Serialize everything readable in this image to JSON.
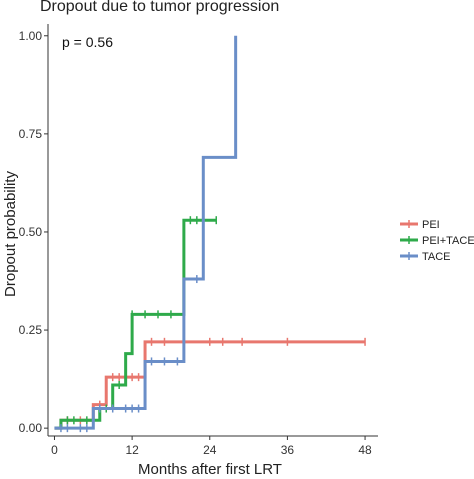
{
  "chart_data": {
    "type": "line",
    "title": "Dropout due to tumor progression",
    "xlabel": "Months after first LRT",
    "ylabel": "Dropout probability",
    "annotation": "p = 0.56",
    "legend_position": "right",
    "xlim": [
      -1,
      50
    ],
    "ylim": [
      -0.02,
      1.03
    ],
    "x_ticks": [
      0,
      12,
      24,
      36,
      48
    ],
    "y_ticks": [
      0.0,
      0.25,
      0.5,
      0.75,
      1.0
    ],
    "y_tick_labels": [
      "0.00",
      "0.25",
      "0.50",
      "0.75",
      "1.00"
    ],
    "grid": false,
    "series": [
      {
        "name": "PEI",
        "color": "#E8776E",
        "steps": [
          [
            0,
            0.0
          ],
          [
            1,
            0.02
          ],
          [
            6,
            0.06
          ],
          [
            8,
            0.13
          ],
          [
            14,
            0.22
          ],
          [
            48,
            0.22
          ]
        ],
        "censor_x": [
          2,
          4,
          7,
          9,
          10,
          11,
          12,
          13,
          15,
          17,
          20,
          24,
          26,
          29,
          36,
          48
        ]
      },
      {
        "name": "PEI+TACE",
        "color": "#2EAA4A",
        "steps": [
          [
            0,
            0.0
          ],
          [
            1,
            0.02
          ],
          [
            7,
            0.05
          ],
          [
            9,
            0.11
          ],
          [
            11,
            0.19
          ],
          [
            12,
            0.29
          ],
          [
            20,
            0.53
          ],
          [
            25,
            0.53
          ]
        ],
        "censor_x": [
          2,
          3,
          5,
          8,
          10,
          12,
          14,
          16,
          18,
          21,
          22,
          23,
          25
        ]
      },
      {
        "name": "TACE",
        "color": "#6A8EC8",
        "steps": [
          [
            0,
            0.0
          ],
          [
            6,
            0.05
          ],
          [
            14,
            0.17
          ],
          [
            20,
            0.38
          ],
          [
            23,
            0.69
          ],
          [
            28,
            1.0
          ]
        ],
        "censor_x": [
          1,
          2,
          4,
          5,
          7,
          9,
          11,
          12,
          13,
          15,
          17,
          19,
          22
        ]
      }
    ]
  }
}
